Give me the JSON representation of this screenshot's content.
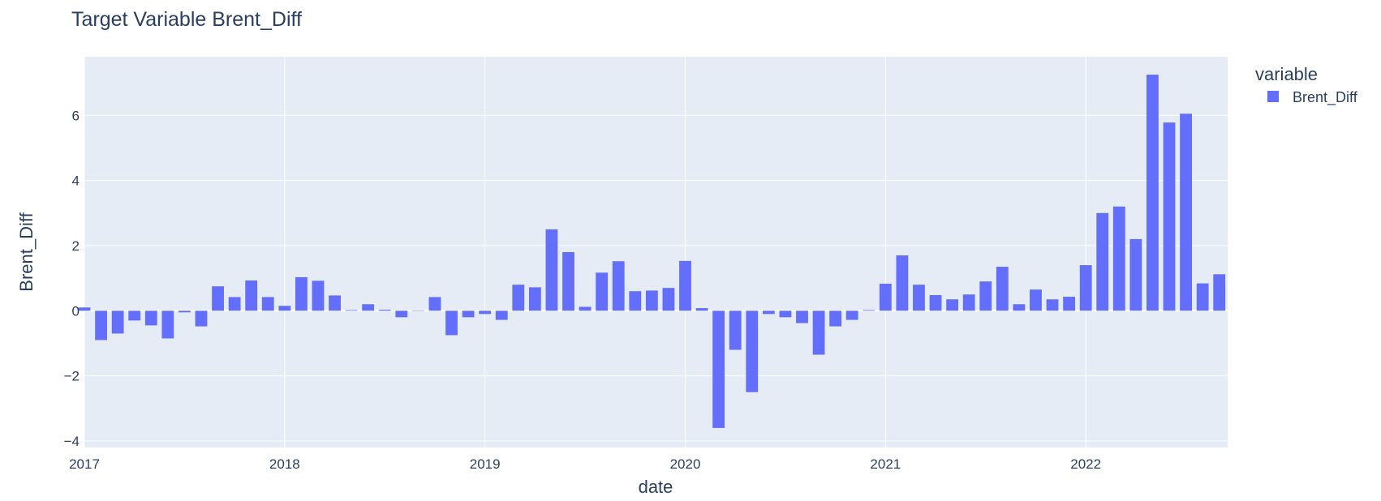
{
  "chart_data": {
    "type": "bar",
    "title": "Target Variable Brent_Diff",
    "xlabel": "date",
    "ylabel": "Brent_Diff",
    "legend_title": "variable",
    "legend_position": "top-right",
    "grid": true,
    "colors": {
      "bar": "#636efa",
      "plot_background": "#e5ecf6",
      "grid": "#ffffff",
      "text": "#2a3f5f"
    },
    "x_range": [
      "2017-01",
      "2022-09"
    ],
    "ylim": [
      -4.2,
      7.8
    ],
    "x_ticks": [
      "2017",
      "2018",
      "2019",
      "2020",
      "2021",
      "2022"
    ],
    "y_ticks": [
      "−4",
      "−2",
      "0",
      "2",
      "4",
      "6"
    ],
    "x": [
      "2017-01",
      "2017-02",
      "2017-03",
      "2017-04",
      "2017-05",
      "2017-06",
      "2017-07",
      "2017-08",
      "2017-09",
      "2017-10",
      "2017-11",
      "2017-12",
      "2018-01",
      "2018-02",
      "2018-03",
      "2018-04",
      "2018-05",
      "2018-06",
      "2018-07",
      "2018-08",
      "2018-09",
      "2018-10",
      "2018-11",
      "2018-12",
      "2019-01",
      "2019-02",
      "2019-03",
      "2019-04",
      "2019-05",
      "2019-06",
      "2019-07",
      "2019-08",
      "2019-09",
      "2019-10",
      "2019-11",
      "2019-12",
      "2020-01",
      "2020-02",
      "2020-03",
      "2020-04",
      "2020-05",
      "2020-06",
      "2020-07",
      "2020-08",
      "2020-09",
      "2020-10",
      "2020-11",
      "2020-12",
      "2021-01",
      "2021-02",
      "2021-03",
      "2021-04",
      "2021-05",
      "2021-06",
      "2021-07",
      "2021-08",
      "2021-09",
      "2021-10",
      "2021-11",
      "2021-12",
      "2022-01",
      "2022-02",
      "2022-03",
      "2022-04",
      "2022-05",
      "2022-06",
      "2022-07",
      "2022-08",
      "2022-09"
    ],
    "series": [
      {
        "name": "Brent_Diff",
        "values": [
          0.1,
          -0.9,
          -0.7,
          -0.3,
          -0.45,
          -0.85,
          -0.05,
          -0.48,
          0.75,
          0.42,
          0.93,
          0.42,
          0.15,
          1.03,
          0.92,
          0.47,
          0.02,
          0.2,
          0.03,
          -0.2,
          0.0,
          0.42,
          -0.75,
          -0.2,
          -0.1,
          -0.28,
          0.8,
          0.72,
          2.5,
          1.8,
          0.12,
          1.17,
          1.52,
          0.6,
          0.62,
          0.7,
          1.53,
          0.08,
          -3.6,
          -1.2,
          -2.5,
          -0.1,
          -0.2,
          -0.38,
          -1.35,
          -0.48,
          -0.28,
          0.02,
          0.83,
          1.7,
          0.8,
          0.48,
          0.35,
          0.5,
          0.9,
          1.35,
          0.2,
          0.65,
          0.35,
          0.43,
          1.4,
          3.0,
          3.2,
          2.2,
          7.25,
          5.78,
          6.05,
          0.84,
          1.12
        ]
      }
    ]
  }
}
